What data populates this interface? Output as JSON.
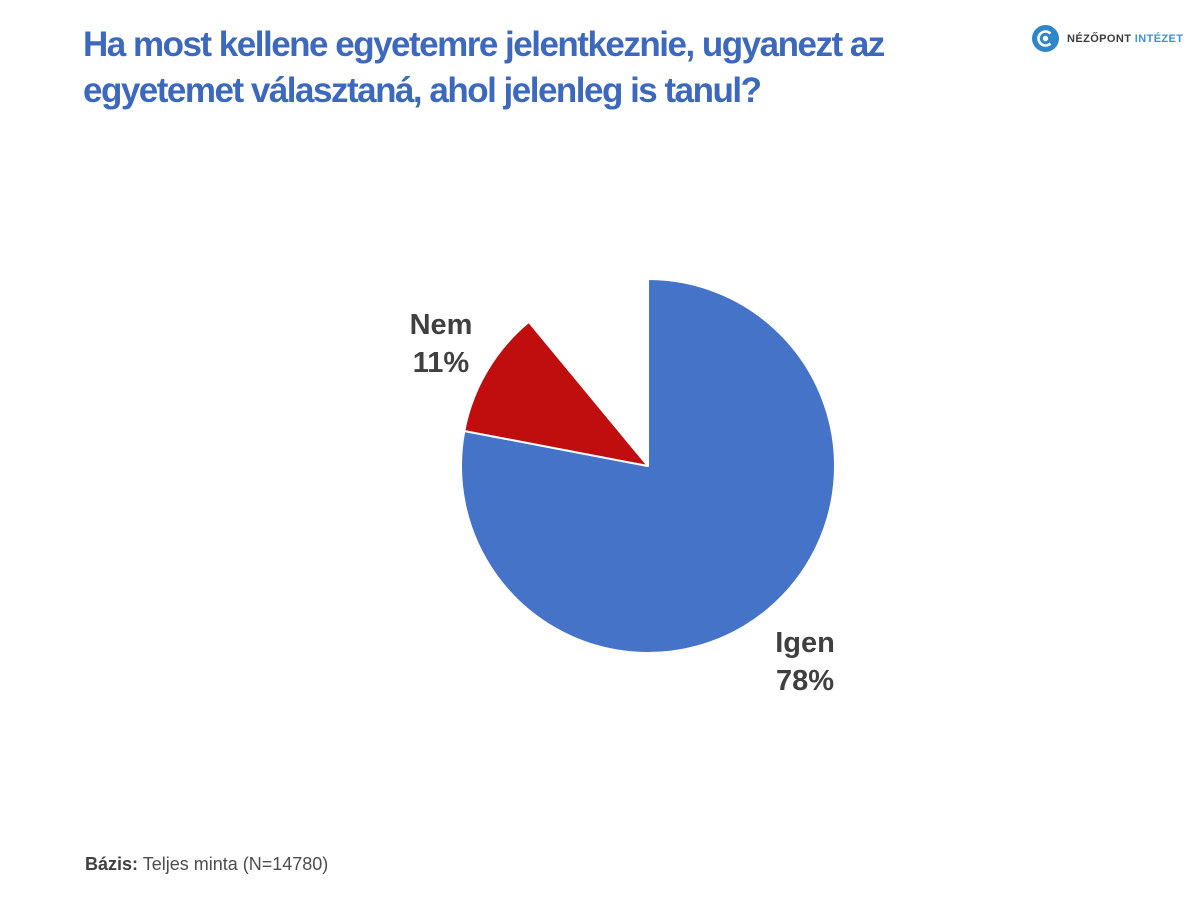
{
  "header": {
    "title": "Ha most kellene egyetemre jelentkeznie, ugyanezt az egyetemet választaná, ahol jelenleg is tanul?",
    "title_color": "#3C68BE"
  },
  "logo": {
    "brand_name": "NÉZŐPONT",
    "brand_suffix": "INTÉZET",
    "icon": "nezopont-eye-icon",
    "icon_color": "#2F87C9",
    "name_color": "#3C3C3C",
    "suffix_color": "#3F90D8"
  },
  "chart_data": {
    "type": "pie",
    "title": "",
    "unit": "%",
    "start_angle_deg": 0,
    "direction": "clockwise",
    "slice_border_color": "#FFFFFF",
    "slices": [
      {
        "label": "Igen",
        "value": 78,
        "display": "78%",
        "color": "#4573C7",
        "label_position": "bottom-right"
      },
      {
        "label": "Nem",
        "value": 11,
        "display": "11%",
        "color": "#C00D0D",
        "label_position": "top-left"
      }
    ],
    "unlabeled_remainder": {
      "value": 11,
      "color": "#FFFFFF",
      "note": "blank wedge, no label shown"
    },
    "legend": "none",
    "label_text_color": "#404040"
  },
  "footnote": {
    "label": "Bázis:",
    "text": " Teljes minta (N=14780)"
  }
}
